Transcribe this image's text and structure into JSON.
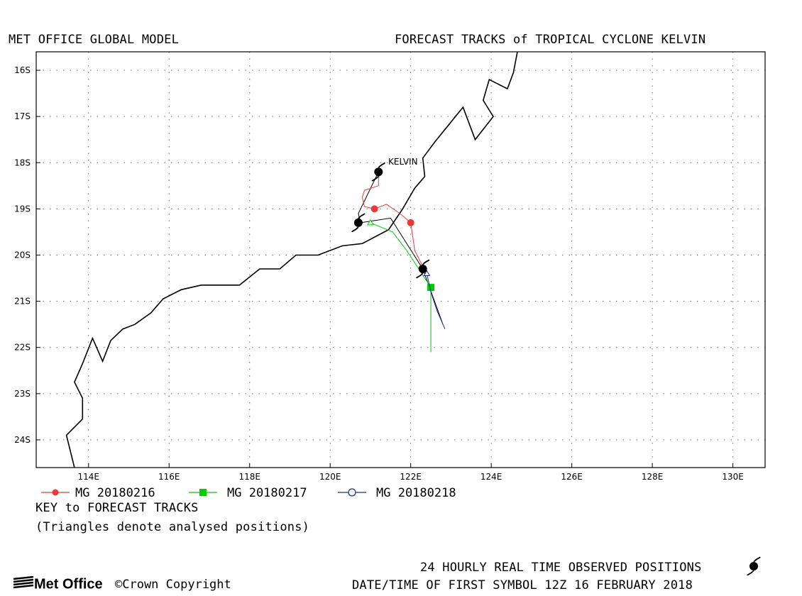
{
  "header": {
    "left_title": "MET OFFICE GLOBAL MODEL",
    "right_title": "FORECAST TRACKS of TROPICAL CYCLONE KELVIN"
  },
  "map": {
    "lat_ticks": [
      "16S",
      "17S",
      "18S",
      "19S",
      "20S",
      "21S",
      "22S",
      "23S",
      "24S"
    ],
    "lon_ticks": [
      "114E",
      "116E",
      "118E",
      "120E",
      "122E",
      "124E",
      "126E",
      "128E",
      "130E"
    ],
    "storm_label": "KELVIN",
    "colors": {
      "coast": "#000000",
      "grid": "#555555",
      "mg0216": "#e83a3a",
      "mg0217": "#00cc00",
      "mg0218": "#1a2a9a"
    }
  },
  "chart_data": {
    "type": "map",
    "xlim": [
      112.7,
      130.8
    ],
    "ylim": [
      -24.6,
      -15.6
    ],
    "grid": true,
    "observed_positions": [
      {
        "lon": 121.2,
        "lat": -18.2
      },
      {
        "lon": 120.7,
        "lat": -19.3
      },
      {
        "lon": 122.3,
        "lat": -20.3
      }
    ],
    "series": [
      {
        "name": "MG 20180216",
        "marker": "circle-filled",
        "points": [
          [
            121.25,
            -18.15
          ],
          [
            121.2,
            -18.35
          ],
          [
            121.2,
            -18.5
          ],
          [
            120.85,
            -18.6
          ],
          [
            120.8,
            -18.75
          ],
          [
            120.85,
            -18.95
          ],
          [
            121.1,
            -19.0
          ],
          [
            121.4,
            -18.9
          ],
          [
            121.65,
            -19.05
          ],
          [
            121.8,
            -19.15
          ],
          [
            122.0,
            -19.3
          ],
          [
            122.1,
            -19.9
          ],
          [
            122.3,
            -20.25
          ]
        ],
        "filled_markers": [
          [
            121.1,
            -19.0
          ],
          [
            122.0,
            -19.3
          ]
        ]
      },
      {
        "name": "MG 20180217",
        "marker": "square-filled",
        "points": [
          [
            121.0,
            -19.3
          ],
          [
            121.55,
            -19.5
          ],
          [
            121.9,
            -19.9
          ],
          [
            122.35,
            -20.5
          ],
          [
            122.5,
            -20.7
          ],
          [
            122.5,
            -21.5
          ],
          [
            122.5,
            -22.1
          ]
        ],
        "filled_markers": [
          [
            122.5,
            -20.7
          ]
        ],
        "analysed": [
          [
            121.0,
            -19.3
          ]
        ]
      },
      {
        "name": "MG 20180218",
        "marker": "circle-open",
        "points": [
          [
            122.3,
            -20.25
          ],
          [
            122.4,
            -20.4
          ],
          [
            122.5,
            -20.8
          ],
          [
            122.65,
            -21.2
          ],
          [
            122.85,
            -21.6
          ]
        ],
        "analysed": [
          [
            122.4,
            -20.4
          ]
        ]
      }
    ],
    "coastline": [
      [
        124.65,
        -15.6
      ],
      [
        124.55,
        -16.05
      ],
      [
        124.4,
        -16.4
      ],
      [
        123.95,
        -16.2
      ],
      [
        123.8,
        -16.65
      ],
      [
        124.05,
        -17.0
      ],
      [
        123.6,
        -17.5
      ],
      [
        123.3,
        -16.8
      ],
      [
        122.6,
        -17.55
      ],
      [
        122.3,
        -17.9
      ],
      [
        122.35,
        -18.3
      ],
      [
        122.1,
        -18.55
      ],
      [
        121.8,
        -19.0
      ],
      [
        121.45,
        -19.45
      ],
      [
        120.8,
        -19.75
      ],
      [
        120.3,
        -19.8
      ],
      [
        119.7,
        -20.0
      ],
      [
        119.15,
        -20.0
      ],
      [
        118.75,
        -20.3
      ],
      [
        118.25,
        -20.3
      ],
      [
        117.75,
        -20.65
      ],
      [
        116.8,
        -20.65
      ],
      [
        116.3,
        -20.75
      ],
      [
        115.85,
        -20.95
      ],
      [
        115.55,
        -21.25
      ],
      [
        115.15,
        -21.5
      ],
      [
        114.85,
        -21.6
      ],
      [
        114.55,
        -21.85
      ],
      [
        114.35,
        -22.3
      ],
      [
        114.1,
        -21.8
      ],
      [
        113.85,
        -22.35
      ],
      [
        113.65,
        -22.75
      ],
      [
        113.85,
        -23.1
      ],
      [
        113.85,
        -23.55
      ],
      [
        113.45,
        -23.9
      ],
      [
        113.65,
        -24.6
      ]
    ]
  },
  "legend": {
    "items": [
      {
        "label": "MG 20180216"
      },
      {
        "label": "MG 20180217"
      },
      {
        "label": "MG 20180218"
      }
    ],
    "key_title": "KEY to FORECAST TRACKS",
    "key_note": "(Triangles denote analysed positions)"
  },
  "footer": {
    "observed_note": "24 HOURLY REAL TIME OBSERVED POSITIONS",
    "first_symbol": "DATE/TIME OF FIRST SYMBOL 12Z 16 FEBRUARY 2018",
    "brand": "Met Office",
    "copyright": "©Crown Copyright"
  }
}
